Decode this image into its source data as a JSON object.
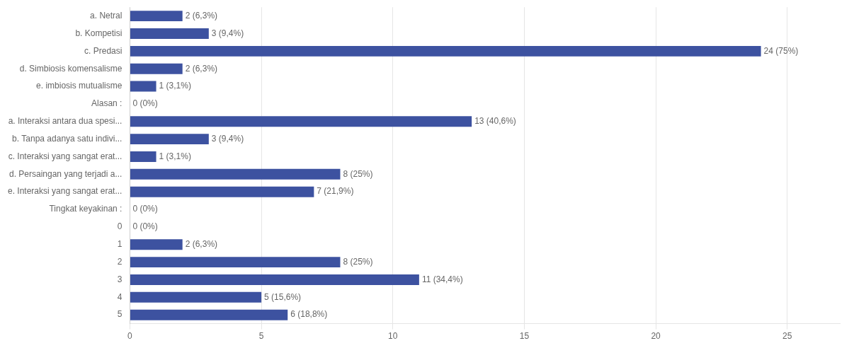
{
  "chart_data": {
    "type": "bar",
    "orientation": "horizontal",
    "categories": [
      "a. Netral",
      "b. Kompetisi",
      "c. Predasi",
      "d. Simbiosis komensalisme",
      "e. imbiosis mutualisme",
      "Alasan :",
      "a. Interaksi antara dua spesi...",
      "b. Tanpa adanya satu indivi...",
      "c. Interaksi yang sangat erat...",
      "d. Persaingan yang terjadi a...",
      "e. Interaksi yang sangat erat...",
      "Tingkat keyakinan :",
      "0",
      "1",
      "2",
      "3",
      "4",
      "5"
    ],
    "values": [
      2,
      3,
      24,
      2,
      1,
      0,
      13,
      3,
      1,
      8,
      7,
      0,
      0,
      2,
      8,
      11,
      5,
      6
    ],
    "value_labels": [
      "2 (6,3%)",
      "3 (9,4%)",
      "24 (75%)",
      "2 (6,3%)",
      "1 (3,1%)",
      "0 (0%)",
      "13 (40,6%)",
      "3 (9,4%)",
      "1 (3,1%)",
      "8 (25%)",
      "7 (21,9%)",
      "0 (0%)",
      "0 (0%)",
      "2 (6,3%)",
      "8 (25%)",
      "11 (34,4%)",
      "5 (15,6%)",
      "6 (18,8%)"
    ],
    "color": "#3D52A0",
    "xlim": [
      0,
      27
    ],
    "xticks": [
      0,
      5,
      10,
      15,
      20,
      25
    ],
    "grid": true
  }
}
